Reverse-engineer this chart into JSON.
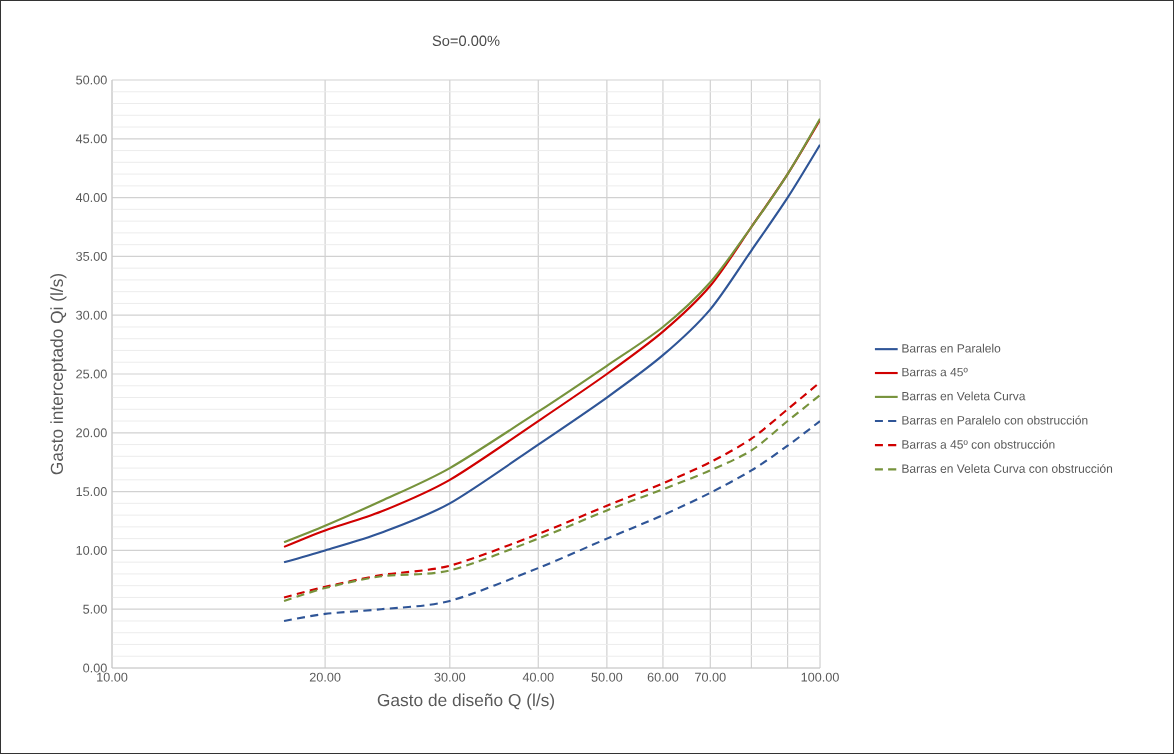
{
  "chart_data": {
    "type": "line",
    "title": "So=0.00%",
    "xlabel": "Gasto de diseño Q (l/s)",
    "ylabel": "Gasto interceptado Qi (l/s)",
    "log": "x",
    "grid": true,
    "legend": "right",
    "xlim": [
      10,
      100
    ],
    "xticks": [
      {
        "value": 10,
        "label": "10.00"
      },
      {
        "value": 20,
        "label": "20.00"
      },
      {
        "value": 30,
        "label": "30.00"
      },
      {
        "value": 40,
        "label": "40.00"
      },
      {
        "value": 50,
        "label": "50.00"
      },
      {
        "value": 60,
        "label": "60.00"
      },
      {
        "value": 70,
        "label": "70.00"
      },
      {
        "value": 80,
        "label": null
      },
      {
        "value": 90,
        "label": null
      },
      {
        "value": 100,
        "label": "100.00"
      }
    ],
    "ylim": [
      0,
      50
    ],
    "yticks": [
      {
        "value": 0,
        "label": "0.00"
      },
      {
        "value": 5,
        "label": "5.00"
      },
      {
        "value": 10,
        "label": "10.00"
      },
      {
        "value": 15,
        "label": "15.00"
      },
      {
        "value": 20,
        "label": "20.00"
      },
      {
        "value": 25,
        "label": "25.00"
      },
      {
        "value": 30,
        "label": "30.00"
      },
      {
        "value": 35,
        "label": "35.00"
      },
      {
        "value": 40,
        "label": "40.00"
      },
      {
        "value": 45,
        "label": "45.00"
      },
      {
        "value": 50,
        "label": "50.00"
      }
    ],
    "x": [
      17.5,
      20,
      24,
      30,
      40,
      50,
      60,
      70,
      80,
      90,
      100
    ],
    "series": [
      {
        "name": "Barras en Paralelo",
        "color": "#2f5597",
        "line_style": "solid",
        "values": [
          9.0,
          10.0,
          11.5,
          14.0,
          19.0,
          23.0,
          26.6,
          30.5,
          35.5,
          40.0,
          44.5
        ]
      },
      {
        "name": "Barras a 45º",
        "color": "#d00000",
        "line_style": "solid",
        "values": [
          10.3,
          11.7,
          13.3,
          16.0,
          21.0,
          25.0,
          28.6,
          32.5,
          37.5,
          42.0,
          46.6
        ]
      },
      {
        "name": "Barras en Veleta Curva",
        "color": "#77933c",
        "line_style": "solid",
        "values": [
          10.7,
          12.1,
          14.2,
          17.0,
          21.8,
          25.7,
          29.0,
          32.8,
          37.5,
          42.0,
          46.7
        ]
      },
      {
        "name": "Barras en Paralelo con obstrucción",
        "color": "#2f5597",
        "line_style": "dashed",
        "values": [
          4.0,
          4.6,
          5.0,
          5.7,
          8.5,
          11.0,
          13.0,
          14.9,
          16.8,
          18.9,
          21.0
        ]
      },
      {
        "name": "Barras a 45º con obstrucción",
        "color": "#d00000",
        "line_style": "dashed",
        "values": [
          6.0,
          6.9,
          7.9,
          8.7,
          11.4,
          13.8,
          15.7,
          17.5,
          19.5,
          22.0,
          24.3
        ]
      },
      {
        "name": "Barras en Veleta Curva con obstrucción",
        "color": "#77933c",
        "line_style": "dashed",
        "values": [
          5.7,
          6.8,
          7.8,
          8.3,
          11.0,
          13.4,
          15.2,
          16.8,
          18.5,
          21.0,
          23.2
        ]
      }
    ]
  }
}
